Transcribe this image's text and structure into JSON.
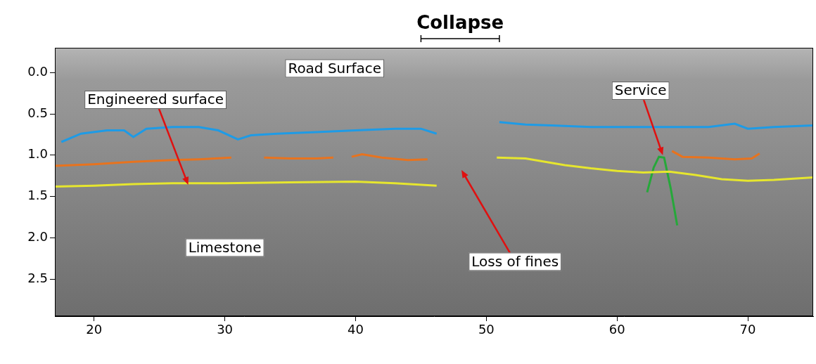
{
  "chart_data": {
    "type": "line",
    "title": "Collapse",
    "title_span": [
      45,
      51
    ],
    "xlim": [
      17,
      75
    ],
    "xticks": [
      20,
      30,
      40,
      50,
      60,
      70
    ],
    "ylim": [
      -0.3,
      2.95
    ],
    "yticks": [
      {
        "value": 0,
        "label": "0.0"
      },
      0.5,
      {
        "value": 1,
        "label": "1.0"
      },
      1.5,
      {
        "value": 2,
        "label": "2.0"
      },
      2.5
    ],
    "y_reversed": true,
    "grid": false,
    "series": [
      {
        "color": "#1e9be6",
        "x": [
          17.5,
          19,
          21,
          22.3,
          23,
          24,
          26,
          28,
          29.5,
          31,
          32,
          34,
          37,
          40,
          43,
          45,
          46.2,
          48,
          51,
          53,
          55,
          58,
          61,
          64,
          67,
          69,
          70,
          72,
          75
        ],
        "values": [
          0.84,
          0.74,
          0.7,
          0.7,
          0.78,
          0.68,
          0.66,
          0.66,
          0.7,
          0.81,
          0.76,
          0.74,
          0.72,
          0.7,
          0.68,
          0.68,
          0.74,
          null,
          0.6,
          0.63,
          0.64,
          0.66,
          0.66,
          0.66,
          0.66,
          0.62,
          0.68,
          0.66,
          0.64
        ]
      },
      {
        "color": "#e8731e",
        "x": [
          17,
          20,
          23,
          26,
          28,
          30.5,
          31.5,
          33,
          35,
          37,
          38.3,
          39,
          39.7,
          40.5,
          42,
          44,
          45.5,
          55,
          64.2,
          65,
          67,
          69,
          70.3,
          70.9
        ],
        "values": [
          1.13,
          1.11,
          1.08,
          1.06,
          1.05,
          1.03,
          null,
          1.03,
          1.04,
          1.04,
          1.03,
          null,
          1.02,
          0.99,
          1.03,
          1.06,
          1.05,
          null,
          0.95,
          1.02,
          1.03,
          1.05,
          1.04,
          0.98
        ]
      },
      {
        "color": "#e6e62e",
        "x": [
          17,
          20,
          23,
          26,
          30,
          35,
          40,
          43,
          46.2,
          48.5,
          50.8,
          53,
          54.5,
          56,
          58,
          60,
          62,
          64,
          66,
          68,
          70,
          72,
          75
        ],
        "values": [
          1.38,
          1.37,
          1.35,
          1.34,
          1.34,
          1.33,
          1.32,
          1.34,
          1.37,
          null,
          1.03,
          1.04,
          1.08,
          1.12,
          1.16,
          1.19,
          1.21,
          1.2,
          1.24,
          1.29,
          1.31,
          1.3,
          1.27
        ]
      },
      {
        "color": "#26a83a",
        "x": [
          62.3,
          62.8,
          63.2,
          63.6,
          64.1,
          64.6
        ],
        "values": [
          1.45,
          1.15,
          1.02,
          1.03,
          1.4,
          1.85
        ]
      }
    ],
    "annotations": [
      {
        "text": "Road Surface",
        "x": 38.4,
        "y": -0.05
      },
      {
        "text": "Engineered surface",
        "x": 24.7,
        "y": 0.33,
        "arrow_to": [
          27.2,
          1.36
        ]
      },
      {
        "text": "Service",
        "x": 61.8,
        "y": 0.22,
        "arrow_to": [
          63.5,
          1.0
        ]
      },
      {
        "text": "Limestone",
        "x": 30.0,
        "y": 2.12
      },
      {
        "text": "Loss of fines",
        "x": 52.2,
        "y": 2.29,
        "arrow_to": [
          48.1,
          1.18
        ]
      }
    ]
  }
}
